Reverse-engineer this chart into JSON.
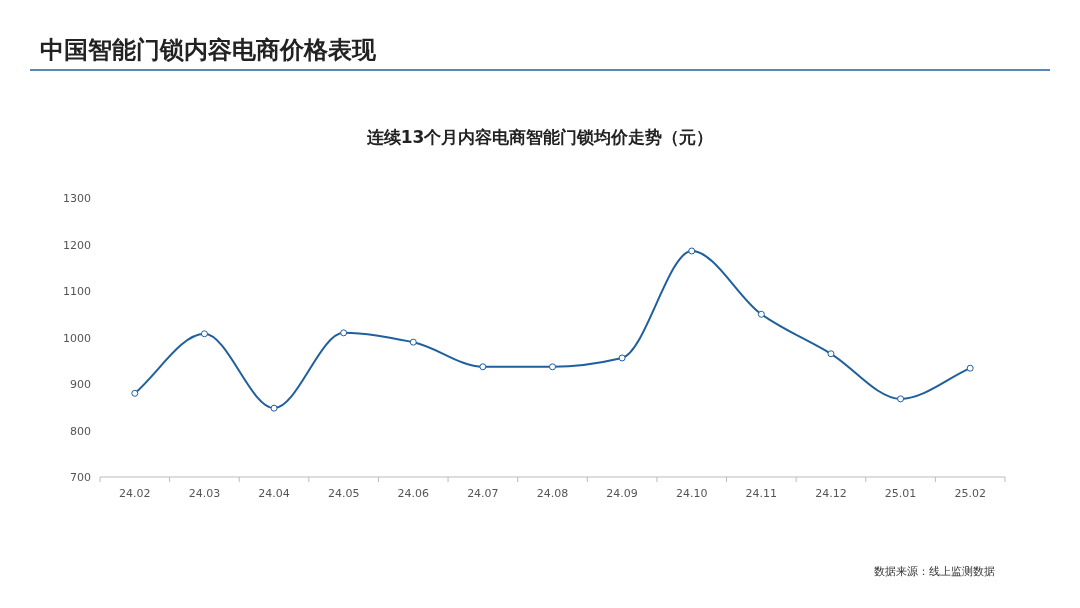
{
  "chart_data": {
    "type": "line",
    "title": "中国智能门锁内容电商价格表现",
    "subtitle": "连续13个月内容电商智能门锁均价走势（元）",
    "categories": [
      "24.02",
      "24.03",
      "24.04",
      "24.05",
      "24.06",
      "24.07",
      "24.08",
      "24.09",
      "24.10",
      "24.11",
      "24.12",
      "25.01",
      "25.02"
    ],
    "series": [
      {
        "color": "#1f5f9e",
        "values": [
          880,
          1008,
          848,
          1010,
          990,
          937,
          937,
          956,
          1186,
          1050,
          965,
          868,
          934
        ]
      }
    ],
    "ylim": [
      700,
      1300
    ],
    "yticks": [
      700,
      800,
      900,
      1000,
      1100,
      1200,
      1300
    ],
    "grid": false,
    "marker": "circle",
    "line_style": "solid",
    "annotations": [
      "数据来源：线上监测数据"
    ]
  }
}
